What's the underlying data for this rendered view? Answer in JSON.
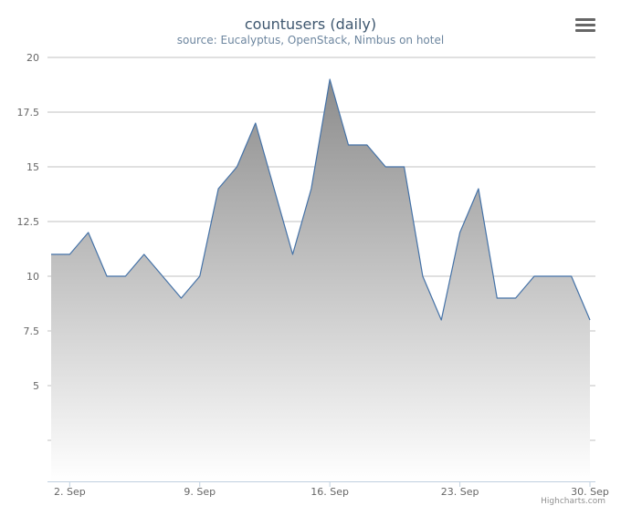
{
  "chart_data": {
    "type": "area",
    "title": "countusers (daily)",
    "subtitle": "source: Eucalyptus, OpenStack, Nimbus on hotel",
    "x": [
      "1 Sep",
      "2 Sep",
      "3 Sep",
      "4 Sep",
      "5 Sep",
      "6 Sep",
      "7 Sep",
      "8 Sep",
      "9 Sep",
      "10 Sep",
      "11 Sep",
      "12 Sep",
      "13 Sep",
      "14 Sep",
      "15 Sep",
      "16 Sep",
      "17 Sep",
      "18 Sep",
      "19 Sep",
      "20 Sep",
      "21 Sep",
      "22 Sep",
      "23 Sep",
      "24 Sep",
      "25 Sep",
      "26 Sep",
      "27 Sep",
      "28 Sep",
      "29 Sep",
      "30 Sep"
    ],
    "series": [
      {
        "values": [
          11,
          11,
          12,
          10,
          10,
          11,
          10,
          9,
          10,
          14,
          15,
          17,
          14,
          11,
          14,
          19,
          16,
          16,
          15,
          15,
          10,
          8,
          12,
          14,
          9,
          9,
          10,
          10,
          10,
          8
        ]
      }
    ],
    "ylim": [
      0,
      20
    ],
    "yticks": [
      "5",
      "7.5",
      "10",
      "12.5",
      "15",
      "17.5",
      "20"
    ],
    "xticks": [
      "2. Sep",
      "9. Sep",
      "16. Sep",
      "23. Sep",
      "30. Sep"
    ],
    "grid": true,
    "colors": {
      "line": "#4572a7",
      "fill_top": "#8c8c8c",
      "fill_bottom": "#ffffff",
      "grid": "#c0c0c0"
    }
  },
  "ui": {
    "menu_icon": "hamburger-menu-icon",
    "credits": "Highcharts.com"
  }
}
